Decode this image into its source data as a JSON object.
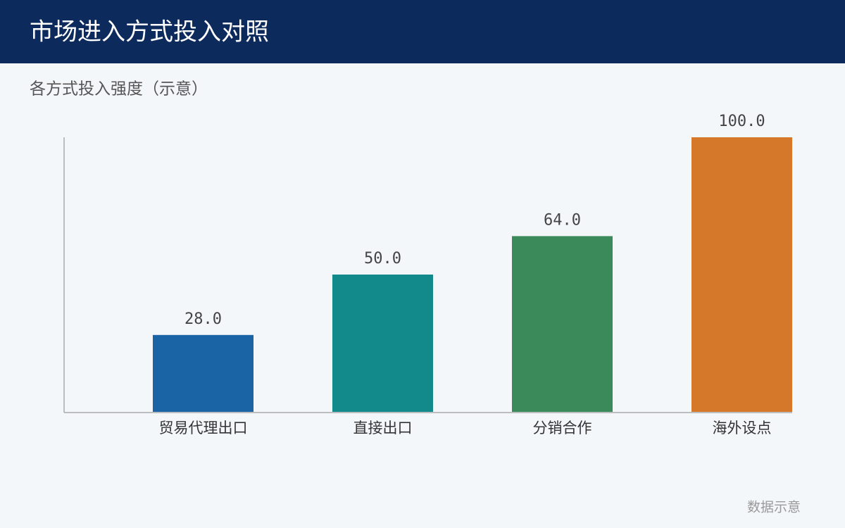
{
  "header": {
    "title": "市场进入方式投入对照"
  },
  "chart_data": {
    "type": "bar",
    "title": "各方式投入强度（示意）",
    "categories": [
      "贸易代理出口",
      "直接出口",
      "分销合作",
      "海外设点"
    ],
    "values": [
      28,
      50,
      64,
      100
    ],
    "value_labels": [
      "28.0",
      "50.0",
      "64.0",
      "100.0"
    ],
    "colors": [
      "#1a63a5",
      "#128a8c",
      "#3a8a5a",
      "#d6782a"
    ],
    "ylim": [
      0,
      100
    ]
  },
  "footer": {
    "note": "数据示意"
  }
}
